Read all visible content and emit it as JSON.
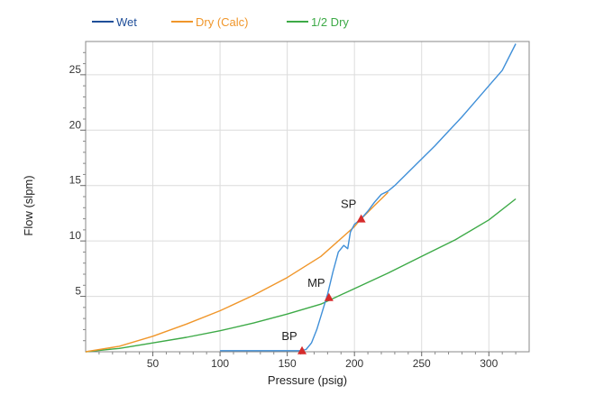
{
  "chart_data": {
    "type": "line",
    "xlabel": "Pressure (psig)",
    "ylabel": "Flow (slpm)",
    "xlim": [
      0,
      330
    ],
    "ylim": [
      0,
      28
    ],
    "xticks": [
      50,
      100,
      150,
      200,
      250,
      300
    ],
    "yticks": [
      5,
      10,
      15,
      20,
      25
    ],
    "grid": true,
    "legend_position": "top-left",
    "series": [
      {
        "name": "Wet",
        "color": "#1f4e99",
        "x": [
          100,
          150,
          160,
          164,
          168,
          172,
          176,
          180,
          184,
          188,
          192,
          195,
          197,
          200,
          203,
          205,
          210,
          215,
          220,
          225,
          230,
          240,
          250,
          260,
          270,
          280,
          290,
          300,
          310,
          320
        ],
        "y": [
          0.1,
          0.1,
          0.1,
          0.2,
          0.8,
          2.0,
          3.6,
          5.2,
          7.2,
          9.0,
          9.6,
          9.3,
          10.8,
          11.5,
          11.8,
          12.0,
          12.7,
          13.5,
          14.2,
          14.5,
          15.0,
          16.2,
          17.4,
          18.6,
          19.9,
          21.2,
          22.6,
          24.0,
          25.4,
          27.8
        ]
      },
      {
        "name": "Dry (Calc)",
        "color": "#f0962a",
        "x": [
          0,
          25,
          50,
          75,
          100,
          125,
          150,
          175,
          200,
          205,
          210,
          215,
          220,
          225
        ],
        "y": [
          0.0,
          0.5,
          1.4,
          2.5,
          3.7,
          5.1,
          6.7,
          8.6,
          11.3,
          12.0,
          12.6,
          13.2,
          13.8,
          14.4
        ]
      },
      {
        "name": "1/2 Dry",
        "color": "#3daa47",
        "x": [
          0,
          25,
          50,
          75,
          100,
          125,
          150,
          175,
          200,
          225,
          250,
          275,
          300,
          320
        ],
        "y": [
          0.0,
          0.3,
          0.8,
          1.3,
          1.9,
          2.6,
          3.4,
          4.3,
          5.7,
          7.1,
          8.6,
          10.1,
          11.9,
          13.8
        ]
      }
    ],
    "annotations": [
      {
        "label": "BP",
        "x": 161,
        "y": 0.1
      },
      {
        "label": "MP",
        "x": 181,
        "y": 4.9
      },
      {
        "label": "SP",
        "x": 205,
        "y": 12.0
      }
    ],
    "marker_color": "#d62b2b"
  }
}
